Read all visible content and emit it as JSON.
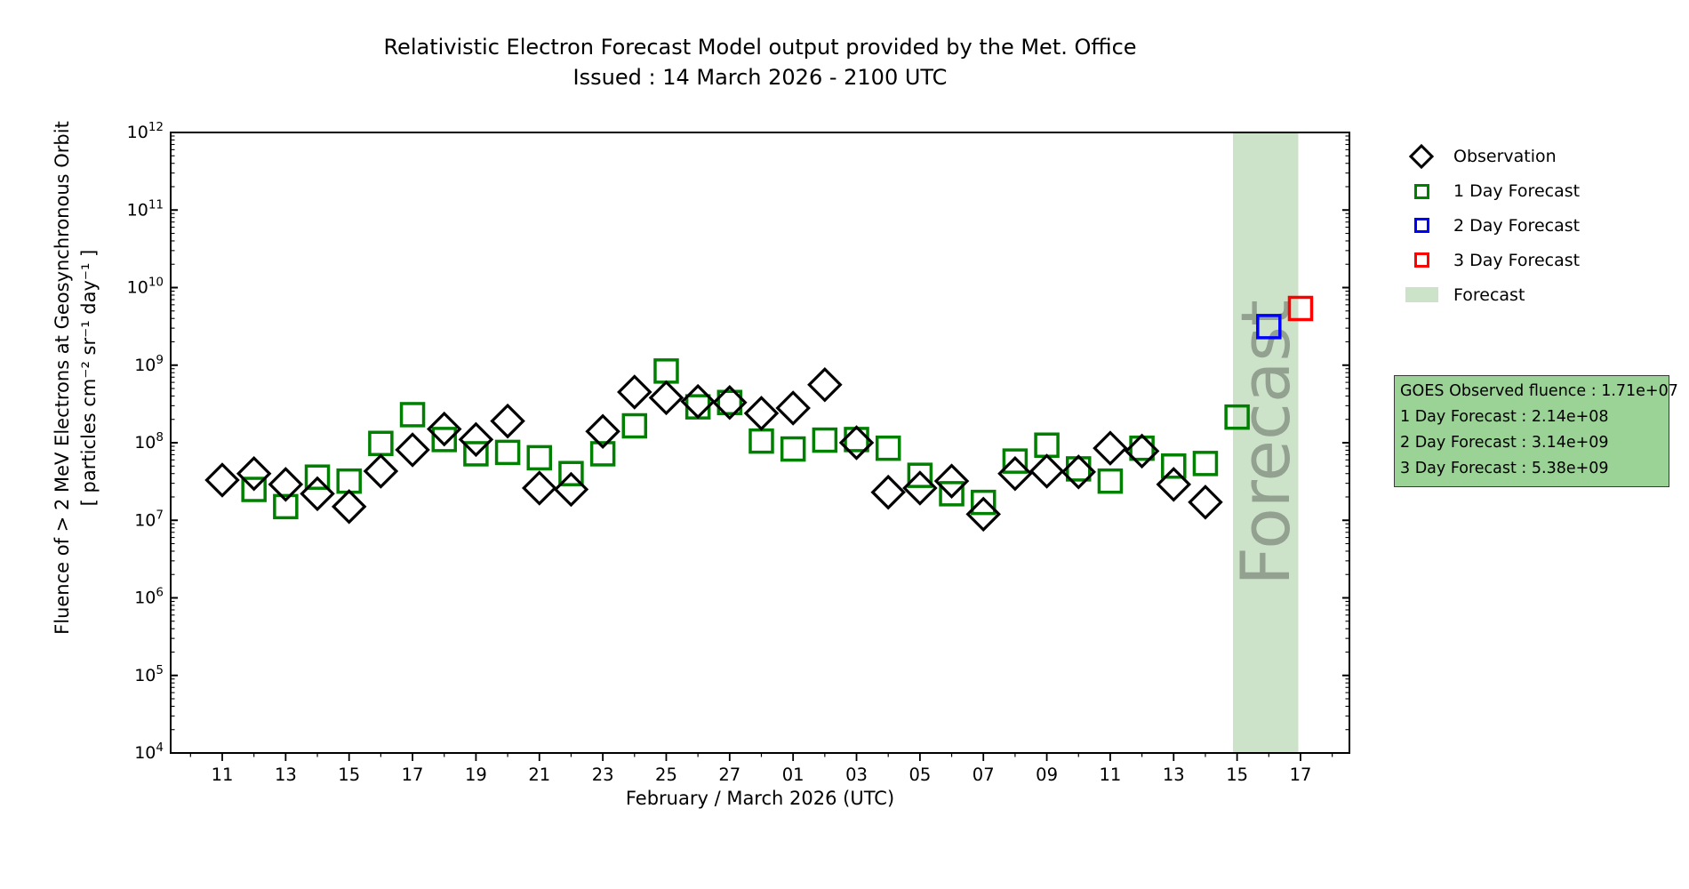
{
  "title": {
    "line1": "Relativistic Electron Forecast Model output provided by the Met. Office",
    "line2": "Issued : 14 March 2026 - 2100 UTC"
  },
  "axes": {
    "ylabel_line1": "Fluence of > 2 MeV Electrons at Geosynchronous Orbit",
    "ylabel_line2": "[ particles cm⁻² sr⁻¹ day⁻¹ ]",
    "xlabel": "February / March 2026 (UTC)"
  },
  "legend": {
    "items": [
      {
        "label": "Observation",
        "marker": "diamond",
        "color": "#000000"
      },
      {
        "label": "1 Day Forecast",
        "marker": "square",
        "color": "#008000"
      },
      {
        "label": "2 Day Forecast",
        "marker": "square",
        "color": "#0000ff"
      },
      {
        "label": "3 Day Forecast",
        "marker": "square",
        "color": "#ff0000"
      },
      {
        "label": "Forecast",
        "marker": "patch",
        "color": "#cde3c9"
      }
    ]
  },
  "info_box": {
    "background": "#9bd296",
    "lines": [
      "GOES Observed fluence : 1.71e+07",
      "1 Day Forecast : 2.14e+08",
      "2 Day Forecast : 3.14e+09",
      "3 Day Forecast : 5.38e+09"
    ]
  },
  "chart_data": {
    "type": "scatter",
    "yscale": "log",
    "ylim": [
      10000,
      1000000000000
    ],
    "y_tick_exponents": [
      4,
      5,
      6,
      7,
      8,
      9,
      10,
      11,
      12
    ],
    "x_tick_labels": [
      "11",
      "13",
      "15",
      "17",
      "19",
      "21",
      "23",
      "25",
      "27",
      "01",
      "03",
      "05",
      "07",
      "09",
      "11",
      "13",
      "15",
      "17"
    ],
    "x_tick_days": [
      0,
      2,
      4,
      6,
      8,
      10,
      12,
      14,
      16,
      18,
      20,
      22,
      24,
      26,
      28,
      30,
      32,
      34
    ],
    "x_minor_days": [
      -1,
      1,
      3,
      5,
      7,
      9,
      11,
      13,
      15,
      17,
      19,
      21,
      23,
      25,
      27,
      29,
      31,
      33,
      35
    ],
    "x_unit": "days since 2026-02-11",
    "title": "Relativistic Electron Forecast Model output provided by the Met. Office",
    "subtitle": "Issued : 14 March 2026 - 2100 UTC",
    "xlabel": "February / March 2026 (UTC)",
    "ylabel": "Fluence of > 2 MeV Electrons at Geosynchronous Orbit [ particles cm⁻² sr⁻¹ day⁻¹ ]",
    "legend_position": "right",
    "grid": false,
    "series": [
      {
        "name": "Observation",
        "marker": "diamond",
        "color": "#000000",
        "day_offset": 0,
        "dates": [
          "Feb 11",
          "Feb 12",
          "Feb 13",
          "Feb 14",
          "Feb 15",
          "Feb 16",
          "Feb 17",
          "Feb 18",
          "Feb 19",
          "Feb 20",
          "Feb 21",
          "Feb 22",
          "Feb 23",
          "Feb 24",
          "Feb 25",
          "Feb 26",
          "Feb 27",
          "Feb 28",
          "Mar 01",
          "Mar 02",
          "Mar 03",
          "Mar 04",
          "Mar 05",
          "Mar 06",
          "Mar 07",
          "Mar 08",
          "Mar 09",
          "Mar 10",
          "Mar 11",
          "Mar 12",
          "Mar 13",
          "Mar 14"
        ],
        "values": [
          33000000.0,
          40000000.0,
          29000000.0,
          22000000.0,
          15000000.0,
          43000000.0,
          81000000.0,
          150000000.0,
          110000000.0,
          190000000.0,
          26000000.0,
          25000000.0,
          140000000.0,
          450000000.0,
          380000000.0,
          340000000.0,
          330000000.0,
          240000000.0,
          280000000.0,
          560000000.0,
          100000000.0,
          23000000.0,
          26000000.0,
          32000000.0,
          12000000.0,
          40000000.0,
          43000000.0,
          42000000.0,
          85000000.0,
          78000000.0,
          29000000.0,
          17100000.0
        ]
      },
      {
        "name": "1 Day Forecast",
        "marker": "square",
        "color": "#008000",
        "day_offset": 1,
        "dates": [
          "Feb 12",
          "Feb 13",
          "Feb 14",
          "Feb 15",
          "Feb 16",
          "Feb 17",
          "Feb 18",
          "Feb 19",
          "Feb 20",
          "Feb 21",
          "Feb 22",
          "Feb 23",
          "Feb 24",
          "Feb 25",
          "Feb 26",
          "Feb 27",
          "Feb 28",
          "Mar 01",
          "Mar 02",
          "Mar 03",
          "Mar 04",
          "Mar 05",
          "Mar 06",
          "Mar 07",
          "Mar 08",
          "Mar 09",
          "Mar 10",
          "Mar 11",
          "Mar 12",
          "Mar 13",
          "Mar 14",
          "Mar 15"
        ],
        "values": [
          25000000.0,
          15000000.0,
          36000000.0,
          32000000.0,
          98000000.0,
          230000000.0,
          110000000.0,
          72000000.0,
          75000000.0,
          64000000.0,
          40000000.0,
          72000000.0,
          165000000.0,
          840000000.0,
          290000000.0,
          330000000.0,
          105000000.0,
          83000000.0,
          108000000.0,
          110000000.0,
          85000000.0,
          38000000.0,
          22000000.0,
          17000000.0,
          58000000.0,
          93000000.0,
          46000000.0,
          32000000.0,
          85000000.0,
          50000000.0,
          54000000.0,
          214000000.0
        ]
      },
      {
        "name": "2 Day Forecast",
        "marker": "square",
        "color": "#0000ff",
        "day_offset": 33,
        "dates": [
          "Mar 16"
        ],
        "values": [
          3140000000.0
        ]
      },
      {
        "name": "3 Day Forecast",
        "marker": "square",
        "color": "#ff0000",
        "day_offset": 34,
        "dates": [
          "Mar 17"
        ],
        "values": [
          5380000000.0
        ]
      }
    ],
    "forecast_band": {
      "label": "Forecast",
      "start_day": 31.87,
      "end_day": 33.93,
      "fill": "#cde3c9",
      "watermark_color": "#6b756b"
    }
  }
}
